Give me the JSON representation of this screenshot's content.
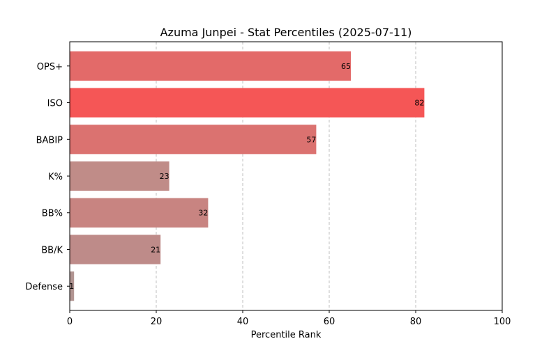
{
  "chart_data": {
    "type": "bar",
    "orientation": "horizontal",
    "title": "Azuma Junpei - Stat Percentiles (2025-07-11)",
    "xlabel": "Percentile Rank",
    "ylabel": "",
    "xlim": [
      0,
      100
    ],
    "xticks": [
      0,
      20,
      40,
      60,
      80,
      100
    ],
    "grid": "vertical-dashed",
    "categories": [
      "OPS+",
      "ISO",
      "BABIP",
      "K%",
      "BB%",
      "BB/K",
      "Defense"
    ],
    "values": [
      65,
      82,
      57,
      23,
      32,
      21,
      1
    ],
    "colors": [
      "#e36a69",
      "#f55656",
      "#db7270",
      "#c08c88",
      "#c88481",
      "#be8b89",
      "#b29592"
    ]
  }
}
